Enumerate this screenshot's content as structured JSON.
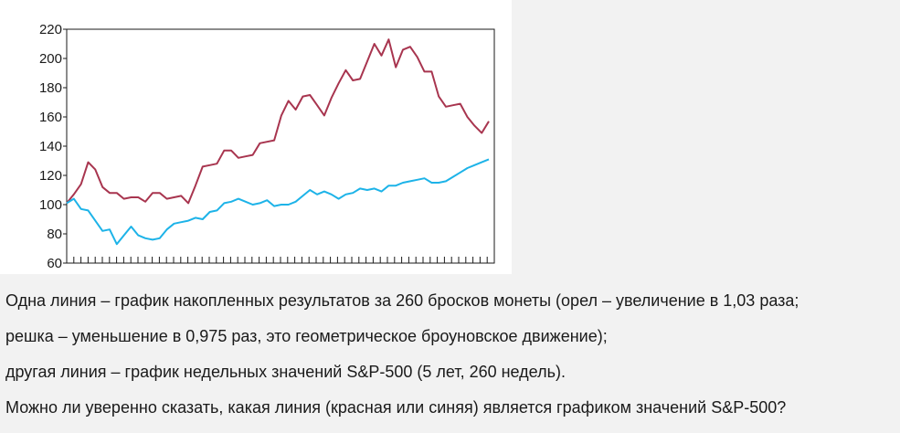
{
  "chart_data": {
    "type": "line",
    "ylim": [
      60,
      220
    ],
    "yticks": [
      60,
      80,
      100,
      120,
      140,
      160,
      180,
      200,
      220
    ],
    "grid": false,
    "series": [
      {
        "color": "#a8354f",
        "values": [
          101,
          107,
          114,
          129,
          124,
          112,
          108,
          108,
          104,
          105,
          105,
          102,
          108,
          108,
          104,
          105,
          106,
          101,
          113,
          126,
          127,
          128,
          137,
          137,
          132,
          133,
          134,
          142,
          143,
          144,
          161,
          171,
          165,
          174,
          175,
          168,
          161,
          173,
          183,
          192,
          185,
          186,
          198,
          210,
          202,
          213,
          194,
          206,
          208,
          201,
          191,
          191,
          174,
          167,
          168,
          169,
          160,
          154,
          149,
          157
        ]
      },
      {
        "color": "#1db3e8",
        "values": [
          101,
          104,
          97,
          96,
          89,
          82,
          83,
          73,
          79,
          85,
          79,
          77,
          76,
          77,
          83,
          87,
          88,
          89,
          91,
          90,
          95,
          96,
          101,
          102,
          104,
          102,
          100,
          101,
          103,
          99,
          100,
          100,
          102,
          106,
          110,
          107,
          109,
          107,
          104,
          107,
          108,
          111,
          110,
          111,
          109,
          113,
          113,
          115,
          116,
          117,
          118,
          115,
          115,
          116,
          119,
          122,
          125,
          127,
          129,
          131
        ]
      }
    ]
  },
  "text": {
    "line1": "Одна линия – график накопленных результатов за 260 бросков монеты (орел – увеличение в 1,03 раза;",
    "line2": "решка – уменьшение в 0,975 раз, это геометрическое броуновское движение);",
    "line3": "другая линия – график недельных значений S&P-500 (5 лет, 260 недель).",
    "line4": "Можно ли уверенно сказать, какая линия (красная или синяя) является графиком значений S&P-500?"
  }
}
